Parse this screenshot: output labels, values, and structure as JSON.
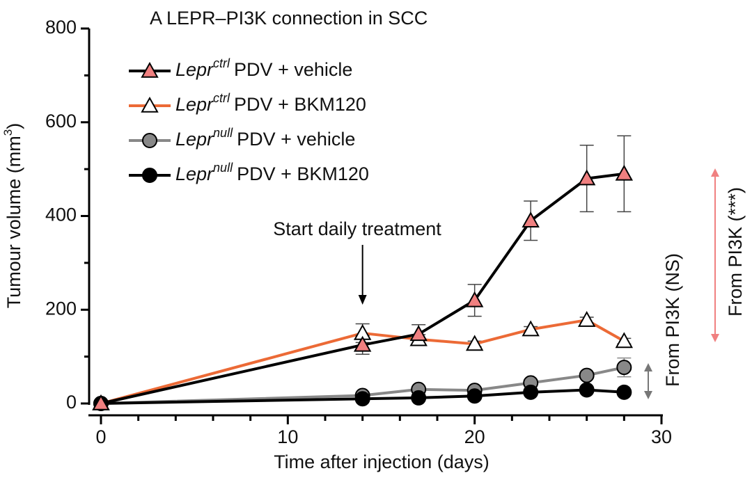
{
  "chart_data": {
    "type": "line",
    "title": "A LEPR–PI3K connection in SCC",
    "x_label": "Time after injection (days)",
    "y_label": [
      "Tumour volume (mm",
      "3",
      ")"
    ],
    "xlim": [
      0,
      30
    ],
    "xticks": [
      0,
      10,
      20,
      30
    ],
    "xminor": [
      2,
      4,
      6,
      8,
      12,
      14,
      16,
      18,
      22,
      24,
      26,
      28
    ],
    "ylim": [
      0,
      800
    ],
    "yticks": [
      0,
      200,
      400,
      600,
      800
    ],
    "yminor": [
      100,
      300,
      500,
      700
    ],
    "x": [
      0,
      14,
      17,
      20,
      23,
      26,
      28
    ],
    "series": [
      {
        "name": [
          "Lepr",
          "null",
          "PDV + vehicle"
        ],
        "color": "#888888",
        "marker": "circle",
        "marker_fill": "#888888",
        "values": [
          0,
          17,
          30,
          28,
          44,
          60,
          77
        ],
        "errors": [
          0,
          0,
          0,
          0,
          0,
          0,
          20
        ]
      },
      {
        "name": [
          "Lepr",
          "null",
          "PDV + BKM120"
        ],
        "color": "#000000",
        "marker": "circle",
        "marker_fill": "#000000",
        "values": [
          0,
          10,
          12,
          16,
          24,
          29,
          24
        ]
      },
      {
        "name": [
          "Lepr",
          "ctrl",
          "PDV + BKM120"
        ],
        "color": "#ec6a36",
        "marker": "triangle",
        "marker_fill": "#ffffff",
        "values": [
          0,
          150,
          137,
          127,
          158,
          178,
          133
        ],
        "errors": [
          0,
          20,
          10,
          6,
          6,
          6,
          6
        ]
      },
      {
        "name": [
          "Lepr",
          "ctrl",
          "PDV + vehicle"
        ],
        "color": "#000000",
        "marker": "triangle",
        "marker_fill": "#f08080",
        "values": [
          0,
          125,
          148,
          220,
          390,
          480,
          490
        ],
        "errors": [
          0,
          20,
          20,
          34,
          42,
          71,
          81
        ]
      }
    ],
    "legend_order": [
      3,
      2,
      0,
      1
    ],
    "annotations": [
      {
        "text": "Start daily treatment",
        "x": 14
      },
      {
        "text": "From PI3K (NS)",
        "color": "#777777"
      },
      {
        "text": "From PI3K (***)",
        "color": "#f08080"
      }
    ]
  }
}
